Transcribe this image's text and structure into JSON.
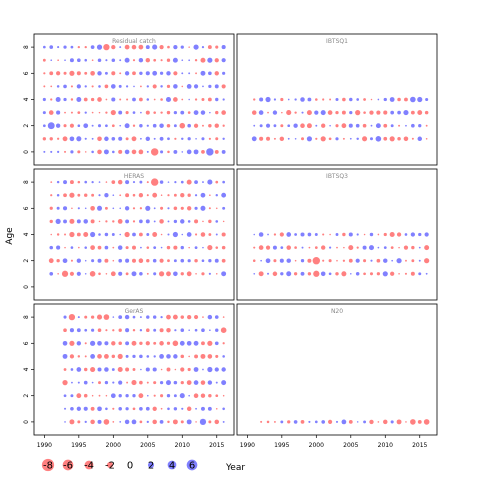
{
  "chart_data": {
    "type": "scatter",
    "subtype": "bubble",
    "xlabel": "Year",
    "ylabel": "Age",
    "xlim": [
      1988.5,
      2017.5
    ],
    "ylim": [
      -1,
      9
    ],
    "xticks": [
      1990,
      1995,
      2000,
      2005,
      2010,
      2015
    ],
    "yticks": [
      0,
      2,
      4,
      6,
      8
    ],
    "colors": {
      "positive": "#5555ff",
      "negative": "#ff5555"
    },
    "legend": {
      "placement": "bottom-left",
      "values": [
        -8,
        -6,
        -4,
        -2,
        0,
        2,
        4,
        6
      ]
    },
    "panels": [
      {
        "name": "Residual catch",
        "position": "top-left",
        "years": [
          1990,
          2016
        ],
        "ages": [
          0,
          8
        ],
        "highlights": [
          [
            1999,
            8,
            -5
          ],
          [
            2006,
            0,
            -7
          ],
          [
            2014,
            0,
            7
          ],
          [
            1991,
            2,
            6
          ],
          [
            2010,
            2,
            -4
          ],
          [
            1993,
            1,
            -3
          ],
          [
            2003,
            1,
            -3
          ]
        ]
      },
      {
        "name": "IBTSQ1",
        "position": "top-right",
        "years": [
          1991,
          2016
        ],
        "ages": [
          1,
          4
        ],
        "highlights": [
          [
            2009,
            1,
            4
          ],
          [
            2014,
            4,
            4
          ]
        ]
      },
      {
        "name": "HERAS",
        "position": "middle-left",
        "years": [
          1991,
          2016
        ],
        "ages": [
          1,
          8
        ],
        "highlights": [
          [
            2006,
            8,
            -7
          ],
          [
            1993,
            1,
            -5
          ],
          [
            1997,
            1,
            -4
          ]
        ]
      },
      {
        "name": "IBTSQ3",
        "position": "middle-right",
        "years": [
          1991,
          2016
        ],
        "ages": [
          1,
          4
        ],
        "highlights": [
          [
            2000,
            2,
            -7
          ],
          [
            2000,
            1,
            -5
          ]
        ]
      },
      {
        "name": "GerAS",
        "position": "bottom-left",
        "years": [
          1993,
          2016
        ],
        "ages": [
          0,
          8
        ],
        "highlights": [
          [
            1994,
            8,
            -5
          ],
          [
            1999,
            8,
            -4
          ],
          [
            2016,
            7,
            -4
          ],
          [
            2009,
            6,
            -4
          ],
          [
            2013,
            0,
            5
          ],
          [
            1999,
            0,
            -4
          ]
        ]
      },
      {
        "name": "N20",
        "position": "bottom-right",
        "years": [
          1992,
          2016
        ],
        "ages": [
          0,
          0
        ],
        "highlights": [
          [
            2014,
            0,
            -4
          ],
          [
            2016,
            0,
            -4
          ]
        ]
      }
    ]
  }
}
